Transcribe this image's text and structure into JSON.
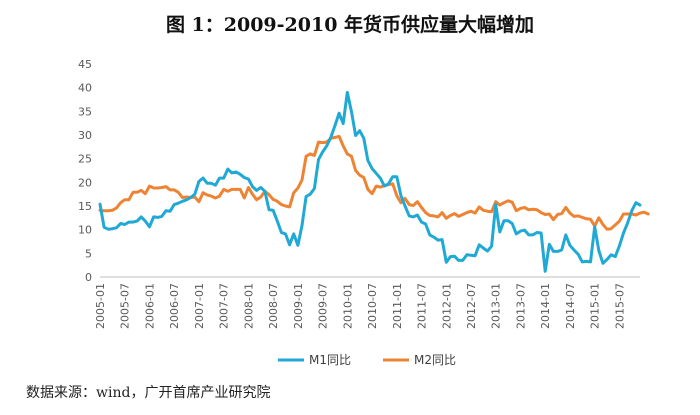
{
  "title": "图 1：2009-2010 年货币供应量大幅增加",
  "source": "数据来源：wind，广开首席产业研究院",
  "colors": {
    "m1": "#21A9D6",
    "m2": "#EE8433",
    "axis": "#BFBFBF",
    "tick": "#595959"
  },
  "chart_data": {
    "type": "line",
    "title": "",
    "xlabel": "",
    "ylabel": "",
    "ylim": [
      0,
      45
    ],
    "yticks": [
      "0",
      "5",
      "10",
      "15",
      "20",
      "25",
      "30",
      "35",
      "40",
      "45"
    ],
    "grid": false,
    "legend_position": "bottom",
    "x_start": "2005-01",
    "x_end": "2015-12",
    "x_tick_labels": [
      "2005-01",
      "2005-07",
      "2006-01",
      "2006-07",
      "2007-01",
      "2007-07",
      "2008-01",
      "2008-07",
      "2009-01",
      "2009-07",
      "2010-01",
      "2010-07",
      "2011-01",
      "2011-07",
      "2012-01",
      "2012-07",
      "2013-01",
      "2013-07",
      "2014-01",
      "2014-07",
      "2015-01",
      "2015-07"
    ],
    "series": [
      {
        "name": "M1同比",
        "values": [
          15.4,
          10.5,
          10.1,
          10.2,
          10.4,
          11.3,
          11.1,
          11.6,
          11.6,
          11.8,
          12.7,
          11.8,
          10.6,
          12.7,
          12.6,
          12.8,
          14.0,
          13.9,
          15.3,
          15.6,
          16.0,
          16.3,
          16.8,
          17.5,
          20.2,
          20.9,
          19.8,
          19.8,
          19.4,
          20.9,
          20.9,
          22.8,
          22.0,
          22.2,
          21.7,
          21.0,
          20.7,
          19.1,
          18.3,
          18.9,
          18.1,
          14.2,
          14.1,
          11.8,
          9.4,
          9.1,
          6.8,
          9.1,
          6.7,
          10.9,
          17.0,
          17.5,
          18.7,
          24.8,
          26.4,
          27.7,
          29.5,
          32.0,
          34.6,
          32.4,
          39.0,
          34.9,
          29.9,
          30.9,
          29.3,
          24.6,
          22.9,
          21.9,
          20.9,
          19.2,
          19.7,
          21.2,
          21.2,
          17.2,
          15.0,
          12.9,
          12.7,
          13.1,
          11.6,
          11.2,
          8.9,
          8.4,
          7.8,
          7.9,
          3.1,
          4.3,
          4.4,
          3.5,
          3.5,
          4.7,
          4.6,
          4.5,
          6.8,
          6.1,
          5.5,
          6.5,
          15.3,
          9.5,
          11.9,
          11.9,
          11.3,
          9.1,
          9.7,
          9.9,
          8.9,
          8.9,
          9.4,
          9.3,
          1.2,
          6.9,
          5.4,
          5.4,
          5.7,
          8.9,
          6.7,
          5.7,
          4.8,
          3.2,
          3.3,
          3.2,
          10.6,
          5.6,
          2.9,
          3.7,
          4.7,
          4.3,
          6.6,
          9.3,
          11.4,
          14.0,
          15.7,
          15.2
        ]
      },
      {
        "name": "M2同比",
        "values": [
          14.1,
          14.0,
          14.0,
          14.1,
          14.6,
          15.7,
          16.3,
          16.3,
          17.9,
          17.9,
          18.3,
          17.6,
          19.2,
          18.8,
          18.8,
          18.9,
          19.1,
          18.4,
          18.4,
          17.9,
          16.8,
          16.9,
          16.8,
          16.9,
          15.9,
          17.8,
          17.3,
          17.1,
          16.7,
          17.1,
          18.5,
          18.1,
          18.5,
          18.5,
          18.5,
          16.7,
          18.9,
          17.5,
          16.3,
          16.9,
          18.1,
          17.4,
          16.4,
          16.0,
          15.3,
          15.0,
          14.8,
          17.8,
          18.8,
          20.5,
          25.5,
          26.0,
          25.7,
          28.5,
          28.4,
          28.5,
          29.3,
          29.5,
          29.7,
          27.7,
          26.0,
          25.5,
          22.5,
          21.5,
          21.0,
          18.5,
          17.6,
          19.2,
          19.0,
          19.3,
          19.5,
          19.7,
          17.2,
          15.7,
          16.6,
          15.3,
          15.1,
          15.9,
          14.7,
          13.6,
          13.0,
          12.9,
          12.7,
          13.6,
          12.4,
          13.0,
          13.4,
          12.8,
          13.2,
          13.6,
          13.9,
          13.5,
          14.8,
          14.1,
          13.9,
          13.8,
          15.9,
          15.2,
          15.7,
          16.1,
          15.8,
          14.0,
          14.5,
          14.7,
          14.2,
          14.3,
          14.2,
          13.6,
          13.2,
          13.3,
          12.1,
          13.2,
          13.4,
          14.7,
          13.5,
          12.8,
          12.9,
          12.6,
          12.3,
          12.2,
          10.8,
          12.5,
          11.1,
          10.1,
          10.2,
          11.0,
          11.8,
          13.3,
          13.3,
          13.3,
          13.1,
          13.5,
          13.7,
          13.3
        ]
      }
    ]
  }
}
